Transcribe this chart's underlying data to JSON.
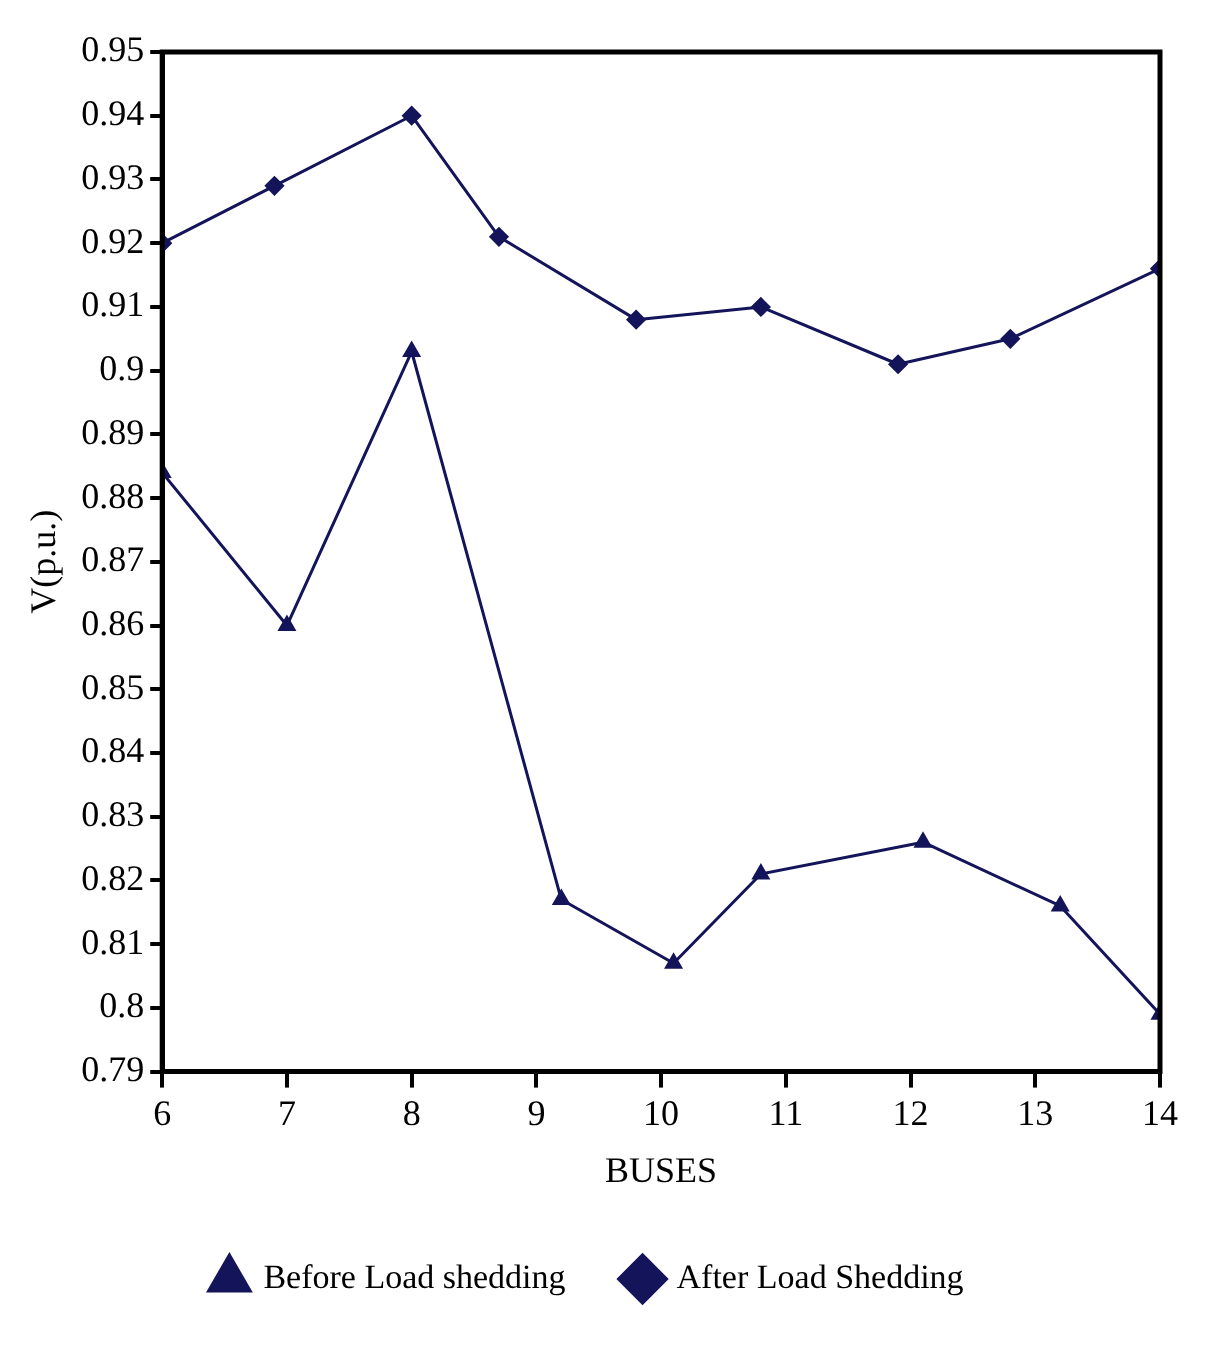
{
  "chart_data": {
    "type": "line",
    "xlabel": "BUSES",
    "ylabel": "V(p.u.)",
    "xlim": [
      6,
      14
    ],
    "xticks": [
      6,
      7,
      8,
      9,
      10,
      11,
      12,
      13,
      14
    ],
    "ylim": [
      0.79,
      0.95
    ],
    "yticks": [
      0.79,
      0.8,
      0.81,
      0.82,
      0.83,
      0.84,
      0.85,
      0.86,
      0.87,
      0.88,
      0.89,
      0.9,
      0.91,
      0.92,
      0.93,
      0.94,
      0.95
    ],
    "grid": false,
    "legend": "bottom",
    "line_style": "solid",
    "series": [
      {
        "name": "Before Load shedding",
        "color": "#14145a",
        "marker": "triangle",
        "x": [
          6,
          7,
          8,
          9.2,
          10.1,
          10.8,
          12.1,
          13.2,
          14
        ],
        "values": [
          0.884,
          0.86,
          0.903,
          0.817,
          0.807,
          0.821,
          0.826,
          0.816,
          0.799
        ]
      },
      {
        "name": "After Load Shedding",
        "color": "#14145a",
        "marker": "diamond",
        "x": [
          6,
          6.9,
          8,
          8.7,
          9.8,
          10.8,
          11.9,
          12.8,
          14
        ],
        "values": [
          0.92,
          0.929,
          0.94,
          0.921,
          0.908,
          0.91,
          0.901,
          0.905,
          0.916
        ]
      }
    ]
  }
}
